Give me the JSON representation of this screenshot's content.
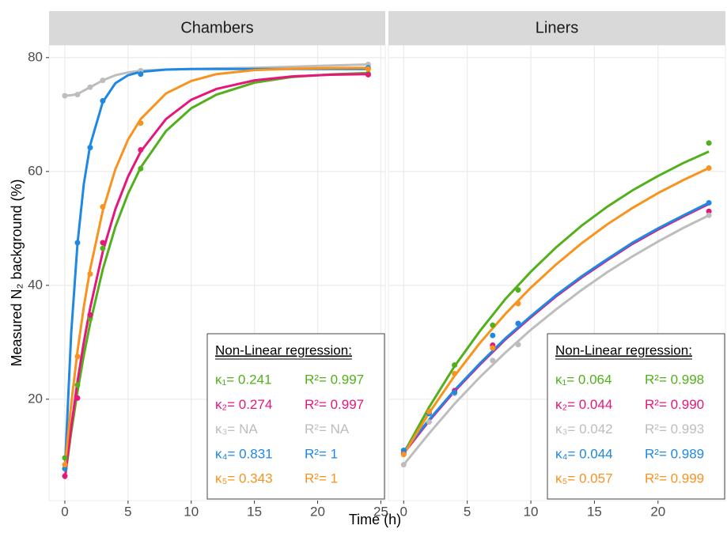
{
  "axis_labels": {
    "x": "Time (h)",
    "y": "Measured N₂ background (%)"
  },
  "chart_data": [
    {
      "type": "scatter",
      "title": "Chambers",
      "legend_title": "Non-Linear regression:",
      "show_yticks": true,
      "xlim": [
        -1.25,
        25.35
      ],
      "xticks": [
        0,
        5,
        10,
        15,
        20,
        25
      ],
      "ylim": [
        2.2,
        82.2
      ],
      "yticks": [
        20,
        40,
        60,
        80
      ],
      "x": [
        0,
        1,
        2,
        3,
        6,
        24
      ],
      "fit_x": [
        0,
        0.5,
        1,
        1.5,
        2,
        3,
        4,
        5,
        6,
        8,
        10,
        12,
        15,
        18,
        21,
        24
      ],
      "series": [
        {
          "name": "κ₁= 0.241",
          "r2": "R²= 0.997",
          "color": "#52b01c",
          "values": [
            9.7,
            22.5,
            34.2,
            46.5,
            60.5,
            77.2
          ],
          "fit": [
            6,
            14.15,
            21.3,
            27.7,
            33.3,
            42.8,
            50.3,
            56.1,
            60.7,
            67.1,
            71.1,
            73.5,
            75.6,
            76.6,
            77.05,
            77.3
          ]
        },
        {
          "name": "κ₂= 0.274",
          "r2": "R²= 0.997",
          "color": "#e6177a",
          "values": [
            6.5,
            20.2,
            34.8,
            47.5,
            63.8,
            77
          ],
          "fit": [
            6,
            15.1,
            23.1,
            30,
            36,
            45.9,
            53.4,
            59.1,
            63.5,
            69.2,
            72.6,
            74.5,
            76,
            76.7,
            77,
            77.1
          ]
        },
        {
          "name": "κ₃= NA",
          "r2": "R²= NA",
          "color": "#bdbdbd",
          "values": [
            73.3,
            73.5,
            74.8,
            76,
            77.7,
            78.8
          ],
          "fit": [
            73.3,
            73.4,
            73.6,
            74.2,
            74.8,
            76,
            76.9,
            77.4,
            77.7,
            77.9,
            78,
            78.1,
            78.2,
            78.4,
            78.6,
            78.8
          ]
        },
        {
          "name": "κ₄= 0.831",
          "r2": "R²= 1",
          "color": "#1e88e5",
          "values": [
            7.8,
            47.5,
            64.2,
            72.4,
            77.1,
            78.2
          ],
          "fit": [
            7.5,
            31.5,
            47.3,
            57.8,
            64.6,
            72.2,
            75.5,
            76.9,
            77.5,
            77.9,
            78,
            78,
            78,
            78,
            78,
            78
          ]
        },
        {
          "name": "κ₅= 0.343",
          "r2": "R²= 1",
          "color": "#f7931e",
          "values": [
            8.5,
            27.5,
            42,
            53.8,
            68.5,
            78
          ],
          "fit": [
            8,
            19.1,
            28.4,
            36.2,
            42.8,
            53.1,
            60.4,
            65.6,
            69.2,
            73.7,
            75.9,
            77.1,
            77.8,
            78.05,
            78.15,
            78.2
          ]
        }
      ]
    },
    {
      "type": "scatter",
      "title": "Liners",
      "legend_title": "Non-Linear regression:",
      "show_yticks": false,
      "xlim": [
        -1.2,
        25.3
      ],
      "xticks": [
        0,
        5,
        10,
        15,
        20
      ],
      "ylim": [
        2.2,
        82.2
      ],
      "yticks": [
        20,
        40,
        60,
        80
      ],
      "x": [
        0,
        2,
        4,
        7,
        9,
        24
      ],
      "fit_x": [
        0,
        2,
        4,
        6,
        8,
        10,
        12,
        14,
        16,
        18,
        20,
        22,
        24
      ],
      "series": [
        {
          "name": "κ₁= 0.064",
          "r2": "R²= 0.998",
          "color": "#52b01c",
          "values": [
            11,
            17.5,
            26,
            33,
            39.2,
            65
          ],
          "fit": [
            10.5,
            18.6,
            25.8,
            32,
            37.6,
            42.4,
            46.7,
            50.5,
            53.8,
            56.7,
            59.2,
            61.5,
            63.5
          ]
        },
        {
          "name": "κ₂= 0.044",
          "r2": "R²= 0.990",
          "color": "#e6177a",
          "values": [
            10.5,
            17.8,
            21.5,
            29.5,
            33.3,
            53
          ],
          "fit": [
            10.5,
            16.2,
            21.4,
            26.1,
            30.5,
            34.4,
            38.1,
            41.4,
            44.4,
            47.3,
            49.8,
            52.1,
            54.3
          ]
        },
        {
          "name": "κ₃= 0.042",
          "r2": "R²= 0.993",
          "color": "#bdbdbd",
          "values": [
            8.5,
            16,
            21,
            26.8,
            29.6,
            52.3
          ],
          "fit": [
            8.5,
            14,
            19.2,
            23.9,
            28.2,
            32.2,
            35.8,
            39.2,
            42.3,
            45.1,
            47.7,
            50.1,
            52.3
          ]
        },
        {
          "name": "κ₄= 0.044",
          "r2": "R²= 0.989",
          "color": "#1e88e5",
          "values": [
            11,
            17.5,
            21.2,
            31.2,
            33.3,
            54.5
          ],
          "fit": [
            10.8,
            16.4,
            21.6,
            26.3,
            30.7,
            34.6,
            38.3,
            41.6,
            44.6,
            47.5,
            50,
            52.3,
            54.5
          ]
        },
        {
          "name": "κ₅= 0.057",
          "r2": "R²= 0.999",
          "color": "#f7931e",
          "values": [
            10.3,
            17.8,
            24.5,
            29,
            36.8,
            60.6
          ],
          "fit": [
            10.3,
            17.6,
            24.1,
            29.9,
            35,
            39.6,
            43.7,
            47.4,
            50.7,
            53.6,
            56.2,
            58.5,
            60.6
          ]
        }
      ]
    }
  ]
}
